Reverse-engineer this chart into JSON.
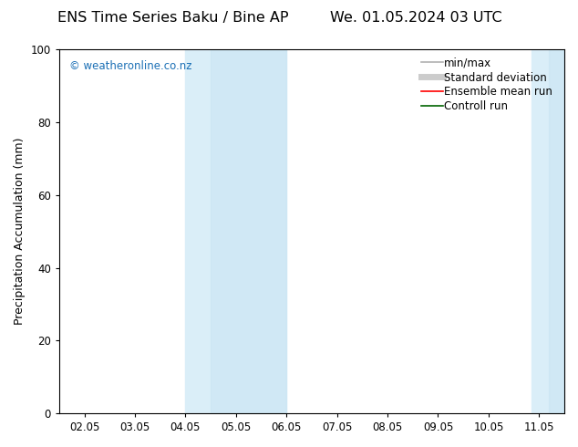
{
  "title_left": "ENS Time Series Baku / Bine AP",
  "title_right": "We. 01.05.2024 03 UTC",
  "ylabel": "Precipitation Accumulation (mm)",
  "ylim": [
    0,
    100
  ],
  "yticks": [
    0,
    20,
    40,
    60,
    80,
    100
  ],
  "x_tick_labels": [
    "02.05",
    "03.05",
    "04.05",
    "05.05",
    "06.05",
    "07.05",
    "08.05",
    "09.05",
    "10.05",
    "11.05"
  ],
  "x_tick_positions": [
    0,
    1,
    2,
    3,
    4,
    5,
    6,
    7,
    8,
    9
  ],
  "xlim": [
    -0.5,
    9.5
  ],
  "blue_bands": [
    {
      "x_start": 2.0,
      "x_end": 4.0
    },
    {
      "x_start": 8.85,
      "x_end": 9.5
    }
  ],
  "inner_bands": [
    {
      "x_start": 2.5,
      "x_end": 4.0
    },
    {
      "x_start": 9.2,
      "x_end": 9.5
    }
  ],
  "watermark_text": "© weatheronline.co.nz",
  "watermark_color": "#1a6fb5",
  "background_color": "#ffffff",
  "plot_bg_color": "#ffffff",
  "legend_items": [
    {
      "label": "min/max",
      "color": "#b0b0b0",
      "lw": 1.2
    },
    {
      "label": "Standard deviation",
      "color": "#cccccc",
      "lw": 5
    },
    {
      "label": "Ensemble mean run",
      "color": "#ff0000",
      "lw": 1.2
    },
    {
      "label": "Controll run",
      "color": "#006400",
      "lw": 1.2
    }
  ],
  "title_fontsize": 11.5,
  "tick_label_fontsize": 8.5,
  "ylabel_fontsize": 9,
  "legend_fontsize": 8.5,
  "watermark_fontsize": 8.5
}
